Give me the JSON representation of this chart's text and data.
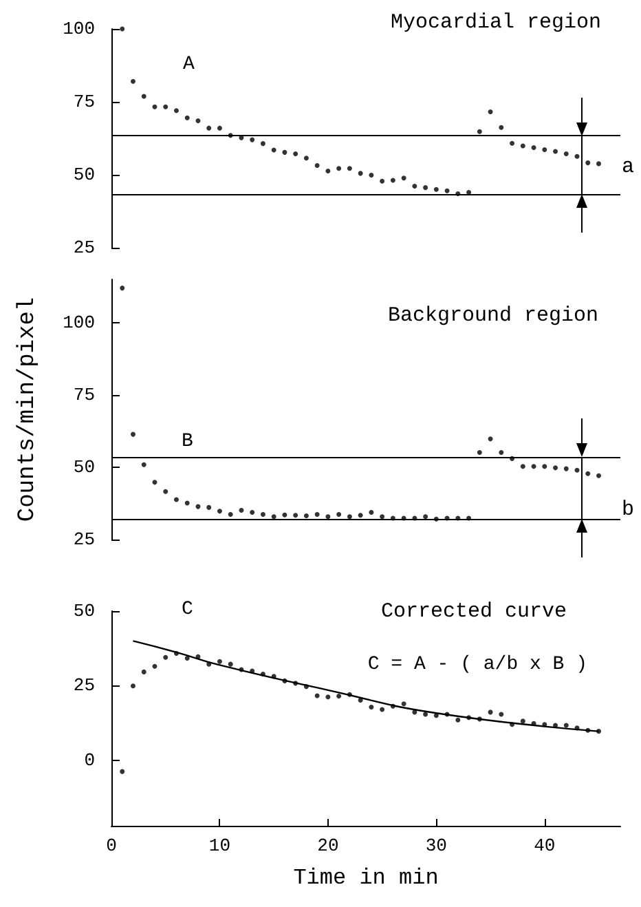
{
  "chart_data": [
    {
      "type": "scatter",
      "title": "Myocardial region",
      "color": "#000000",
      "marker": "circle",
      "tick_labels": "y",
      "xlim": [
        0,
        47
      ],
      "ylim": [
        25,
        100
      ],
      "yticks": [
        25,
        50,
        75,
        100
      ],
      "x": [
        1,
        2,
        3,
        4,
        5,
        6,
        7,
        8,
        9,
        10,
        11,
        12,
        13,
        14,
        15,
        16,
        17,
        18,
        19,
        20,
        21,
        22,
        23,
        24,
        25,
        26,
        27,
        28,
        29,
        30,
        31,
        32,
        33,
        34,
        35,
        36,
        37,
        38,
        39,
        40,
        41,
        42,
        43,
        44,
        45
      ],
      "values": [
        100,
        82,
        76.9,
        73.3,
        73.3,
        72,
        69.5,
        68.5,
        66,
        66,
        63.5,
        62.7,
        62,
        60.7,
        58.5,
        57.7,
        57.2,
        55.7,
        53.2,
        51.3,
        52.2,
        52.2,
        50.5,
        49.9,
        47.8,
        48.1,
        48.9,
        46.1,
        45.6,
        45,
        44.5,
        43.5,
        44,
        64.8,
        71.6,
        66.2,
        60.8,
        59.9,
        59.3,
        58.6,
        58,
        57.2,
        56.3,
        54.1,
        53.8
      ],
      "ref_lines": [
        {
          "axis": "y",
          "value": 63.4
        },
        {
          "axis": "y",
          "value": 43.5
        }
      ],
      "annotations": [
        "A",
        "a"
      ]
    },
    {
      "type": "scatter",
      "title": "Background region",
      "ylabel": "Counts/min/pixel",
      "color": "#000000",
      "marker": "circle",
      "tick_labels": "y",
      "xlim": [
        0,
        47
      ],
      "ylim": [
        25,
        115
      ],
      "yticks": [
        25,
        50,
        75,
        100
      ],
      "x": [
        1,
        2,
        3,
        4,
        5,
        6,
        7,
        8,
        9,
        10,
        11,
        12,
        13,
        14,
        15,
        16,
        17,
        18,
        19,
        20,
        21,
        22,
        23,
        24,
        25,
        26,
        27,
        28,
        29,
        30,
        31,
        32,
        33,
        34,
        35,
        36,
        37,
        38,
        39,
        40,
        41,
        42,
        43,
        44,
        45
      ],
      "values": [
        112,
        61.4,
        50.9,
        44.8,
        41.6,
        38.8,
        37.6,
        36.4,
        36.1,
        34.8,
        33.7,
        35.1,
        34.4,
        33.7,
        32.9,
        33.5,
        33.4,
        33.2,
        33.7,
        32.9,
        33.7,
        32.9,
        33.4,
        34.4,
        32.9,
        32.4,
        32.4,
        32.4,
        32.9,
        32.1,
        32.4,
        32.4,
        32.4,
        55.1,
        59.8,
        55.1,
        53,
        50.3,
        50.3,
        50.3,
        49.8,
        49.5,
        49,
        47.8,
        47.1
      ],
      "ref_lines": [
        {
          "axis": "y",
          "value": 53.5
        },
        {
          "axis": "y",
          "value": 32.1
        }
      ],
      "annotations": [
        "B",
        "b"
      ]
    },
    {
      "type": "scatter",
      "title": "Corrected curve",
      "xlabel": "Time in min",
      "marker": "circle",
      "xlim": [
        0,
        47
      ],
      "xticks": [
        0,
        10,
        20,
        30,
        40
      ],
      "ylim": [
        -22,
        50
      ],
      "yticks": [
        0,
        25,
        50
      ],
      "series": [
        {
          "type": "scatter",
          "color": "#000000",
          "x": [
            1,
            2,
            3,
            4,
            5,
            6,
            7,
            8,
            9,
            10,
            11,
            12,
            13,
            14,
            15,
            16,
            17,
            18,
            19,
            20,
            21,
            22,
            23,
            24,
            25,
            26,
            27,
            28,
            29,
            30,
            31,
            32,
            33,
            34,
            35,
            36,
            37,
            38,
            39,
            40,
            41,
            42,
            43,
            44,
            45
          ],
          "values": [
            -3.8,
            24.9,
            29.6,
            31.5,
            34.5,
            35.8,
            34.2,
            34.7,
            32.2,
            33.1,
            32.2,
            30.4,
            29.9,
            28.9,
            28.1,
            26.6,
            25.8,
            24.7,
            21.6,
            21.2,
            21.5,
            22,
            20.1,
            17.8,
            17,
            18.1,
            18.9,
            16.1,
            15.4,
            15,
            15.4,
            13.5,
            14.3,
            13.8,
            16.1,
            15.4,
            12,
            13.1,
            12.3,
            12,
            11.7,
            11.7,
            10.8,
            10,
            9.7
          ]
        },
        {
          "type": "line",
          "color": "#000000",
          "marker": "none",
          "x": [
            2,
            6,
            10,
            20,
            30,
            45
          ],
          "values": [
            40,
            36.2,
            31.9,
            23.5,
            15.8,
            9.7
          ]
        }
      ],
      "annotations": [
        "C",
        "C = A - ( a/b x B )"
      ]
    }
  ]
}
